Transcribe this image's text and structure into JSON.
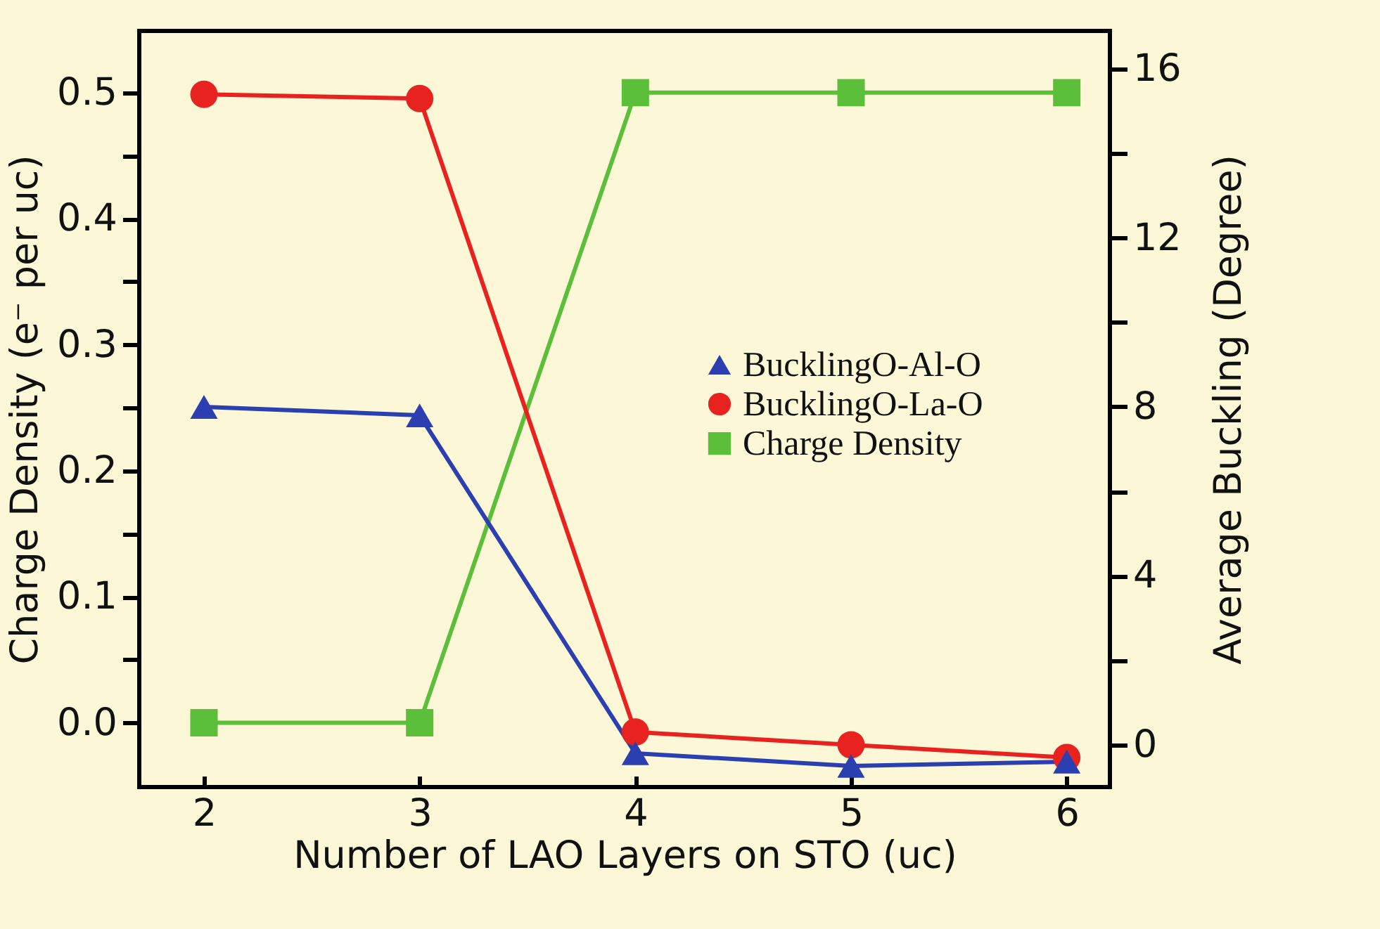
{
  "chart_data": {
    "type": "line",
    "xlabel": "Number of LAO Layers on STO (uc)",
    "ylabel": "Charge Density (e⁻ per uc)",
    "y2label": "Average Buckling (Degree)",
    "x": [
      2,
      3,
      4,
      5,
      6
    ],
    "xlim": [
      1.7,
      6.2
    ],
    "xticks": [
      2,
      3,
      4,
      5,
      6
    ],
    "ylim": [
      -0.051,
      0.549
    ],
    "yticks": [
      {
        "value": 0,
        "label": "0.0"
      },
      {
        "value": 0.05,
        "label": null
      },
      {
        "value": 0.1,
        "label": "0.1"
      },
      {
        "value": 0.15,
        "label": null
      },
      {
        "value": 0.2,
        "label": "0.2"
      },
      {
        "value": 0.25,
        "label": null
      },
      {
        "value": 0.3,
        "label": "0.3"
      },
      {
        "value": 0.35,
        "label": null
      },
      {
        "value": 0.4,
        "label": "0.4"
      },
      {
        "value": 0.45,
        "label": null
      },
      {
        "value": 0.5,
        "label": "0.5"
      }
    ],
    "y2lim": [
      -1,
      16.9
    ],
    "y2ticks": [
      0,
      {
        "value": 2,
        "label": null
      },
      4,
      {
        "value": 6,
        "label": null
      },
      8,
      {
        "value": 10,
        "label": null
      },
      12,
      {
        "value": 14,
        "label": null
      },
      16
    ],
    "series": [
      {
        "name": "BucklingO-Al-O",
        "color": "#2b3fb0",
        "marker": "triangle",
        "axis": "y2",
        "values": [
          8.0,
          7.8,
          -0.2,
          -0.5,
          -0.4
        ]
      },
      {
        "name": "BucklingO-La-O",
        "color": "#e8231f",
        "marker": "circle",
        "axis": "y2",
        "values": [
          15.4,
          15.3,
          0.3,
          0.0,
          -0.3
        ]
      },
      {
        "name": "Charge Density",
        "color": "#5cbf3a",
        "marker": "square",
        "values": [
          0,
          0,
          0.5,
          0.5,
          0.5
        ]
      }
    ],
    "legend": "right",
    "grid": false,
    "line_style": "solid"
  }
}
